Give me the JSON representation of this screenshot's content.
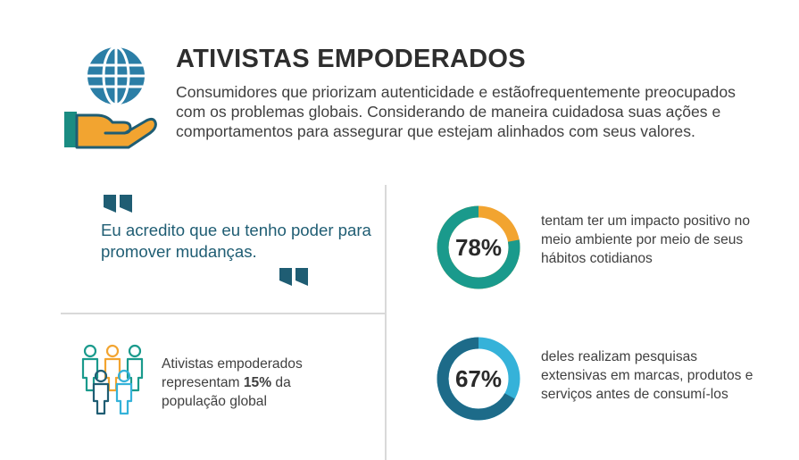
{
  "header": {
    "title": "ATIVISTAS EMPODERADOS",
    "description": "Consumidores que priorizam autenticidade e estãofrequentemente preocupados com os problemas globais. Considerando de maneira cuidadosa suas ações e comportamentos para assegurar que estejam alinhados com seus valores.",
    "icon": "globe-hand-icon"
  },
  "quote": {
    "text": "Eu acredito que eu tenho poder para promover mudanças.",
    "open_icon": "quote-open-icon",
    "close_icon": "quote-close-icon"
  },
  "population": {
    "icon": "people-group-icon",
    "text_before": "Ativistas empoderados representam ",
    "highlight": "15%",
    "text_after": " da população global",
    "value": 15
  },
  "stats": [
    {
      "label": "78%",
      "value": 78,
      "text": "tentam ter um impacto positivo no meio ambiente por meio de seus hábitos cotidianos",
      "accent_color": "#f2a430",
      "main_color": "#1a9a8c"
    },
    {
      "label": "67%",
      "value": 67,
      "text": "deles realizam pesquisas extensivas em marcas, produtos e serviços antes de consumí-los",
      "accent_color": "#35b2d9",
      "main_color": "#1d6b89"
    }
  ],
  "colors": {
    "teal": "#1a9a8c",
    "dark_blue": "#1f5d73",
    "orange": "#f2a430",
    "light_blue": "#35b2d9"
  }
}
